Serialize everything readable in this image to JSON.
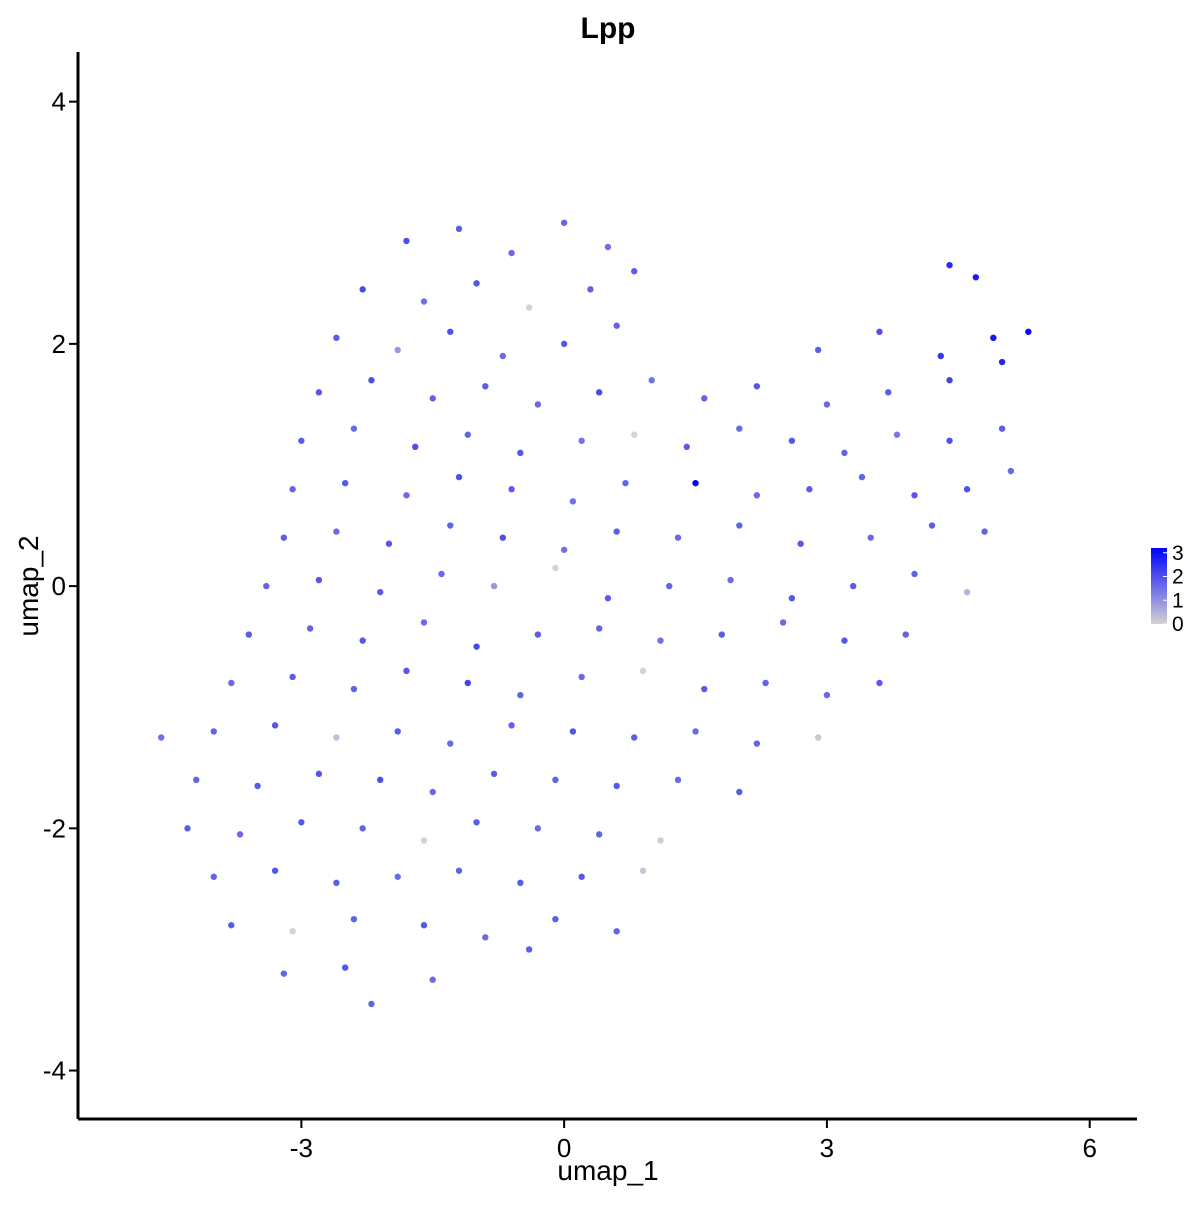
{
  "chart_data": {
    "type": "scatter",
    "title": "Lpp",
    "x_label": "umap_1",
    "y_label": "umap_2",
    "xlim": [
      -5.55,
      6.54
    ],
    "ylim": [
      -4.4,
      4.41
    ],
    "xticks": [
      -3,
      0,
      3,
      6
    ],
    "yticks": [
      -4,
      -2,
      0,
      2,
      4
    ],
    "colorlim": [
      0,
      3.2
    ],
    "colorticks": [
      0,
      1,
      2,
      3
    ],
    "low_color": "#d3d3d3",
    "high_color": "#0000ff",
    "grid": false,
    "series": [
      {
        "name": "Lpp",
        "x": [
          -1.8,
          -1.2,
          -0.6,
          0.0,
          0.5,
          -2.3,
          -1.6,
          -1.0,
          -0.4,
          0.3,
          0.8,
          4.4,
          4.7,
          -2.6,
          -1.9,
          -1.3,
          -0.7,
          0.0,
          0.6,
          2.9,
          3.6,
          4.3,
          4.9,
          5.3,
          -2.8,
          -2.2,
          -1.5,
          -0.9,
          -0.3,
          0.4,
          1.0,
          1.6,
          2.2,
          3.0,
          3.7,
          4.4,
          5.0,
          -3.0,
          -2.4,
          -1.7,
          -1.1,
          -0.5,
          0.2,
          0.8,
          1.4,
          2.0,
          2.6,
          3.2,
          3.8,
          4.4,
          5.0,
          -3.1,
          -2.5,
          -1.8,
          -1.2,
          -0.6,
          0.1,
          0.7,
          1.5,
          2.2,
          2.8,
          3.4,
          4.0,
          4.6,
          5.1,
          -3.2,
          -2.6,
          -2.0,
          -1.3,
          -0.7,
          0.0,
          0.6,
          1.3,
          2.0,
          2.7,
          3.5,
          4.2,
          4.8,
          -3.4,
          -2.8,
          -2.1,
          -1.4,
          -0.8,
          -0.1,
          0.5,
          1.2,
          1.9,
          2.6,
          3.3,
          4.0,
          4.6,
          -3.6,
          -2.9,
          -2.3,
          -1.6,
          -1.0,
          -0.3,
          0.4,
          1.1,
          1.8,
          2.5,
          3.2,
          3.9,
          -3.8,
          -3.1,
          -2.4,
          -1.8,
          -1.1,
          -0.5,
          0.2,
          0.9,
          1.6,
          2.3,
          3.0,
          3.6,
          -4.6,
          -4.0,
          -3.3,
          -2.6,
          -1.9,
          -1.3,
          -0.6,
          0.1,
          0.8,
          1.5,
          2.2,
          2.9,
          -4.2,
          -3.5,
          -2.8,
          -2.1,
          -1.5,
          -0.8,
          -0.1,
          0.6,
          1.3,
          2.0,
          -4.3,
          -3.7,
          -3.0,
          -2.3,
          -1.6,
          -1.0,
          -0.3,
          0.4,
          1.1,
          -4.0,
          -3.3,
          -2.6,
          -1.9,
          -1.2,
          -0.5,
          0.2,
          0.9,
          -3.8,
          -3.1,
          -2.4,
          -1.6,
          -0.9,
          -0.1,
          0.6,
          -3.2,
          -2.5,
          -1.5,
          -0.4,
          -2.2
        ],
        "y": [
          2.85,
          2.95,
          2.75,
          3.0,
          2.8,
          2.45,
          2.35,
          2.5,
          2.3,
          2.45,
          2.6,
          2.65,
          2.55,
          2.05,
          1.95,
          2.1,
          1.9,
          2.0,
          2.15,
          1.95,
          2.1,
          1.9,
          2.05,
          2.1,
          1.6,
          1.7,
          1.55,
          1.65,
          1.5,
          1.6,
          1.7,
          1.55,
          1.65,
          1.5,
          1.6,
          1.7,
          1.85,
          1.2,
          1.3,
          1.15,
          1.25,
          1.1,
          1.2,
          1.25,
          1.15,
          1.3,
          1.2,
          1.1,
          1.25,
          1.2,
          1.3,
          0.8,
          0.85,
          0.75,
          0.9,
          0.8,
          0.7,
          0.85,
          0.85,
          0.75,
          0.8,
          0.9,
          0.75,
          0.8,
          0.95,
          0.4,
          0.45,
          0.35,
          0.5,
          0.4,
          0.3,
          0.45,
          0.4,
          0.5,
          0.35,
          0.4,
          0.5,
          0.45,
          0.0,
          0.05,
          -0.05,
          0.1,
          0.0,
          0.15,
          -0.1,
          0.0,
          0.05,
          -0.1,
          0.0,
          0.1,
          -0.05,
          -0.4,
          -0.35,
          -0.45,
          -0.3,
          -0.5,
          -0.4,
          -0.35,
          -0.45,
          -0.4,
          -0.3,
          -0.45,
          -0.4,
          -0.8,
          -0.75,
          -0.85,
          -0.7,
          -0.8,
          -0.9,
          -0.75,
          -0.7,
          -0.85,
          -0.8,
          -0.9,
          -0.8,
          -1.25,
          -1.2,
          -1.15,
          -1.25,
          -1.2,
          -1.3,
          -1.15,
          -1.2,
          -1.25,
          -1.2,
          -1.3,
          -1.25,
          -1.6,
          -1.65,
          -1.55,
          -1.6,
          -1.7,
          -1.55,
          -1.6,
          -1.65,
          -1.6,
          -1.7,
          -2.0,
          -2.05,
          -1.95,
          -2.0,
          -2.1,
          -1.95,
          -2.0,
          -2.05,
          -2.1,
          -2.4,
          -2.35,
          -2.45,
          -2.4,
          -2.35,
          -2.45,
          -2.4,
          -2.35,
          -2.8,
          -2.85,
          -2.75,
          -2.8,
          -2.9,
          -2.75,
          -2.85,
          -3.2,
          -3.15,
          -3.25,
          -3.0,
          -3.45
        ],
        "values": [
          2.0,
          1.8,
          1.6,
          1.7,
          1.5,
          2.1,
          1.5,
          1.9,
          0.0,
          1.7,
          1.8,
          2.6,
          2.8,
          1.8,
          0.9,
          2.0,
          1.6,
          1.9,
          1.7,
          1.8,
          2.0,
          2.4,
          2.9,
          3.1,
          1.9,
          2.0,
          1.7,
          1.8,
          1.6,
          2.1,
          1.5,
          1.7,
          1.9,
          1.6,
          1.8,
          2.2,
          2.7,
          1.8,
          1.6,
          2.0,
          1.7,
          1.9,
          1.5,
          0.0,
          1.8,
          1.6,
          1.9,
          1.7,
          1.4,
          2.0,
          1.8,
          1.7,
          1.9,
          1.6,
          2.0,
          1.8,
          1.5,
          1.7,
          3.2,
          1.6,
          1.8,
          1.7,
          1.9,
          2.0,
          1.6,
          1.8,
          1.6,
          1.9,
          1.7,
          2.0,
          1.5,
          1.8,
          1.6,
          1.7,
          1.9,
          1.6,
          1.8,
          1.7,
          1.7,
          1.9,
          1.8,
          1.6,
          0.9,
          0.0,
          1.8,
          1.7,
          1.6,
          1.9,
          1.8,
          1.7,
          0.5,
          1.8,
          1.7,
          1.9,
          1.6,
          2.1,
          1.8,
          1.7,
          1.5,
          1.8,
          1.6,
          1.9,
          1.7,
          1.6,
          1.8,
          1.7,
          1.9,
          2.2,
          1.7,
          1.6,
          0.0,
          1.8,
          1.7,
          1.6,
          1.8,
          1.5,
          1.7,
          1.9,
          0.3,
          1.8,
          1.6,
          1.7,
          1.9,
          1.8,
          1.6,
          1.7,
          0.2,
          1.7,
          1.8,
          1.9,
          2.0,
          1.6,
          1.8,
          1.7,
          1.9,
          1.6,
          1.8,
          1.8,
          1.6,
          1.9,
          1.7,
          0.0,
          1.8,
          1.6,
          1.7,
          0.1,
          1.7,
          1.9,
          1.8,
          1.6,
          1.7,
          1.8,
          1.9,
          0.2,
          1.8,
          0.0,
          1.7,
          1.9,
          1.6,
          1.8,
          1.7,
          1.7,
          1.9,
          1.6,
          1.8,
          1.7
        ]
      }
    ]
  }
}
